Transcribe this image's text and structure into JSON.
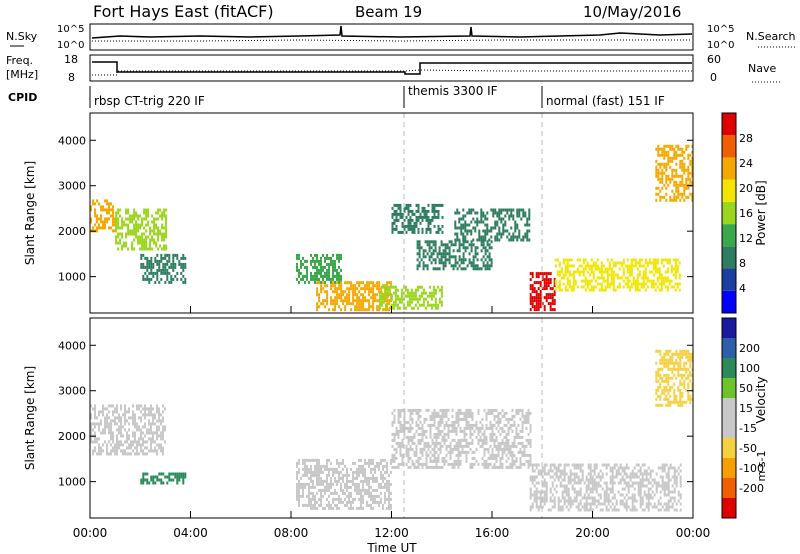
{
  "header": {
    "station": "Fort Hays East (fitACF)",
    "beam": "Beam 19",
    "date": "10/May/2016"
  },
  "noise_panel": {
    "left_label": "N.Sky",
    "right_label": "N.Search",
    "right_line_style": "dotted",
    "ytick_top": "10^5",
    "ytick_bottom": "10^0"
  },
  "freq_panel": {
    "left_label_line1": "Freq.",
    "left_label_line2": "[MHz]",
    "right_label": "Nave",
    "right_line_style": "dotted",
    "left_ticks": [
      "18",
      "8"
    ],
    "right_ticks": [
      "60",
      "0"
    ]
  },
  "cpid": {
    "label": "CPID",
    "segments": [
      {
        "name": "rbsp CT-trig 220 IF",
        "start_hour": 0.0
      },
      {
        "name": "themis 3300 IF",
        "start_hour": 12.6
      },
      {
        "name": "normal (fast) 151 IF",
        "start_hour": 17.8
      }
    ]
  },
  "colors": {
    "power_scale": [
      "#0000ff",
      "#1a3fa0",
      "#2e7d60",
      "#3aa84a",
      "#9ad61e",
      "#f2e600",
      "#f5a800",
      "#f06000",
      "#e00000"
    ],
    "velocity_scale": [
      "#1a1aa0",
      "#2d5fa8",
      "#2a8a5a",
      "#6cc42a",
      "#c8c8c8",
      "#c8c8c8",
      "#f5d040",
      "#f5a000",
      "#f06000",
      "#e00000"
    ],
    "ground_scatter": "#c8c8c8"
  },
  "chart_data": [
    {
      "type": "heatmap",
      "panel": "power",
      "ylabel": "Slant Range [km]",
      "xlabel": "Time UT",
      "xlim": [
        0,
        24
      ],
      "ylim": [
        200,
        4600
      ],
      "x_ticks": [
        "00:00",
        "04:00",
        "08:00",
        "12:00",
        "16:00",
        "20:00",
        "00:00"
      ],
      "y_ticks": [
        1000,
        2000,
        3000,
        4000
      ],
      "colorbar": {
        "label": "Power [dB]",
        "ticks": [
          4,
          8,
          12,
          16,
          20,
          24,
          28
        ],
        "range": [
          0,
          32
        ]
      },
      "regions": [
        {
          "t0": 0.0,
          "t1": 1.0,
          "r0": 2000,
          "r1": 2700,
          "value": 22
        },
        {
          "t0": 1.0,
          "t1": 3.0,
          "r0": 1600,
          "r1": 2500,
          "value": 16
        },
        {
          "t0": 2.0,
          "t1": 3.8,
          "r0": 900,
          "r1": 1500,
          "value": 8
        },
        {
          "t0": 8.2,
          "t1": 10.0,
          "r0": 900,
          "r1": 1500,
          "value": 14
        },
        {
          "t0": 9.0,
          "t1": 12.0,
          "r0": 250,
          "r1": 900,
          "value": 22
        },
        {
          "t0": 11.5,
          "t1": 14.0,
          "r0": 300,
          "r1": 800,
          "value": 16
        },
        {
          "t0": 12.0,
          "t1": 14.0,
          "r0": 2000,
          "r1": 2600,
          "value": 10
        },
        {
          "t0": 14.5,
          "t1": 17.5,
          "r0": 1800,
          "r1": 2500,
          "value": 10
        },
        {
          "t0": 13.0,
          "t1": 16.0,
          "r0": 1200,
          "r1": 1800,
          "value": 8
        },
        {
          "t0": 17.5,
          "t1": 18.5,
          "r0": 300,
          "r1": 1100,
          "value": 30
        },
        {
          "t0": 18.5,
          "t1": 23.5,
          "r0": 700,
          "r1": 1400,
          "value": 20
        },
        {
          "t0": 22.5,
          "t1": 24.0,
          "r0": 2700,
          "r1": 3900,
          "value": 22
        }
      ]
    },
    {
      "type": "heatmap",
      "panel": "velocity",
      "ylabel": "Slant Range [km]",
      "xlabel": "Time UT",
      "xlim": [
        0,
        24
      ],
      "ylim": [
        200,
        4600
      ],
      "x_ticks": [
        "00:00",
        "04:00",
        "08:00",
        "12:00",
        "16:00",
        "20:00",
        "00:00"
      ],
      "y_ticks": [
        1000,
        2000,
        3000,
        4000
      ],
      "colorbar": {
        "label": "Velocity",
        "unit": "m s-1",
        "ticks": [
          200,
          100,
          50,
          15,
          -15,
          -50,
          -100,
          -200
        ]
      },
      "regions": [
        {
          "t0": 0.0,
          "t1": 3.0,
          "r0": 1600,
          "r1": 2700,
          "value": 0
        },
        {
          "t0": 2.0,
          "t1": 3.8,
          "r0": 1000,
          "r1": 1200,
          "value": 40
        },
        {
          "t0": 8.2,
          "t1": 12.0,
          "r0": 400,
          "r1": 1500,
          "value": 0
        },
        {
          "t0": 12.0,
          "t1": 17.5,
          "r0": 1300,
          "r1": 2600,
          "value": 0
        },
        {
          "t0": 17.5,
          "t1": 23.5,
          "r0": 400,
          "r1": 1400,
          "value": 0
        },
        {
          "t0": 22.5,
          "t1": 24.0,
          "r0": 2700,
          "r1": 3900,
          "value": -30
        }
      ]
    }
  ]
}
